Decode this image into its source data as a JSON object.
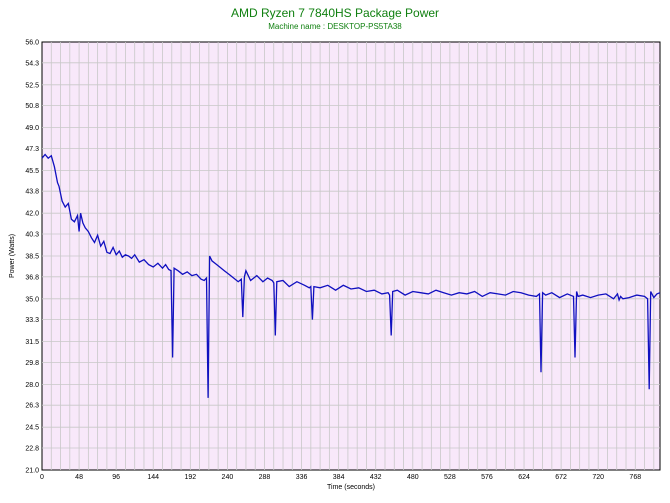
{
  "chart_data": {
    "type": "line",
    "title": "AMD Ryzen 7 7840HS Package Power",
    "subtitle": "Machine name : DESKTOP-PS5TA38",
    "xlabel": "Time (seconds)",
    "ylabel": "Power (Watts)",
    "xlim": [
      0,
      800
    ],
    "ylim": [
      21.0,
      56.0
    ],
    "x_ticks": [
      "0",
      "48",
      "96",
      "144",
      "192",
      "240",
      "288",
      "336",
      "384",
      "432",
      "480",
      "528",
      "576",
      "624",
      "672",
      "720",
      "768"
    ],
    "y_ticks": [
      "56.0",
      "54.3",
      "52.5",
      "50.8",
      "49.0",
      "47.3",
      "45.5",
      "43.8",
      "42.0",
      "40.3",
      "38.5",
      "36.8",
      "35.0",
      "33.3",
      "31.5",
      "29.8",
      "28.0",
      "26.3",
      "24.5",
      "22.8",
      "21.0"
    ],
    "grid": true,
    "colors": {
      "plot_background": "#f8e8fa",
      "grid": "#c8c8c8",
      "line": "#1010c0",
      "title": "#108010"
    },
    "series": [
      {
        "x": [
          0,
          4,
          8,
          12,
          16,
          20,
          22,
          26,
          30,
          34,
          38,
          42,
          46,
          48,
          50,
          53,
          56,
          60,
          64,
          68,
          72,
          76,
          80,
          84,
          88,
          92,
          96,
          100,
          104,
          108,
          112,
          116,
          120,
          126,
          132,
          138,
          144,
          150,
          156,
          160,
          164,
          167,
          169,
          171,
          176,
          182,
          188,
          194,
          200,
          206,
          210,
          213,
          215,
          217,
          220,
          224,
          230,
          236,
          242,
          248,
          254,
          258,
          260,
          262,
          264,
          270,
          278,
          286,
          292,
          298,
          300,
          302,
          304,
          312,
          320,
          330,
          340,
          346,
          348,
          350,
          352,
          360,
          370,
          380,
          390,
          400,
          410,
          420,
          430,
          440,
          448,
          450,
          452,
          454,
          460,
          470,
          480,
          490,
          500,
          510,
          520,
          530,
          540,
          550,
          560,
          570,
          580,
          590,
          600,
          610,
          620,
          630,
          640,
          644,
          646,
          648,
          652,
          660,
          670,
          680,
          688,
          690,
          692,
          694,
          700,
          710,
          720,
          730,
          740,
          745,
          747,
          749,
          752,
          760,
          770,
          780,
          784,
          786,
          788,
          792,
          796,
          800
        ],
        "values": [
          46.5,
          46.8,
          46.5,
          46.7,
          45.8,
          44.5,
          44.2,
          43.0,
          42.5,
          42.8,
          41.5,
          41.3,
          41.8,
          40.5,
          42.0,
          41.2,
          40.8,
          40.5,
          40.0,
          39.6,
          40.2,
          39.3,
          39.7,
          38.8,
          38.7,
          39.2,
          38.6,
          38.9,
          38.4,
          38.6,
          38.5,
          38.3,
          38.6,
          38.0,
          38.2,
          37.8,
          37.6,
          37.9,
          37.5,
          37.8,
          37.4,
          37.3,
          30.2,
          37.5,
          37.3,
          37.0,
          37.2,
          36.9,
          37.0,
          36.6,
          36.5,
          36.7,
          26.9,
          38.5,
          38.1,
          37.9,
          37.6,
          37.3,
          37.0,
          36.7,
          36.4,
          36.6,
          33.5,
          36.8,
          37.3,
          36.5,
          36.9,
          36.4,
          36.7,
          36.5,
          36.3,
          32.0,
          36.4,
          36.5,
          36.0,
          36.4,
          36.1,
          35.9,
          36.0,
          33.3,
          36.0,
          35.9,
          36.1,
          35.7,
          36.1,
          35.8,
          35.9,
          35.6,
          35.7,
          35.4,
          35.5,
          35.3,
          32.0,
          35.6,
          35.7,
          35.3,
          35.6,
          35.5,
          35.4,
          35.7,
          35.5,
          35.3,
          35.5,
          35.4,
          35.6,
          35.2,
          35.5,
          35.4,
          35.3,
          35.6,
          35.5,
          35.3,
          35.2,
          35.4,
          29.0,
          35.5,
          35.3,
          35.5,
          35.1,
          35.4,
          35.2,
          30.2,
          35.6,
          35.2,
          35.3,
          35.1,
          35.3,
          35.4,
          35.0,
          35.4,
          34.9,
          35.2,
          35.0,
          35.1,
          35.3,
          35.2,
          35.0,
          27.6,
          35.6,
          35.1,
          35.4,
          35.5
        ]
      }
    ]
  }
}
